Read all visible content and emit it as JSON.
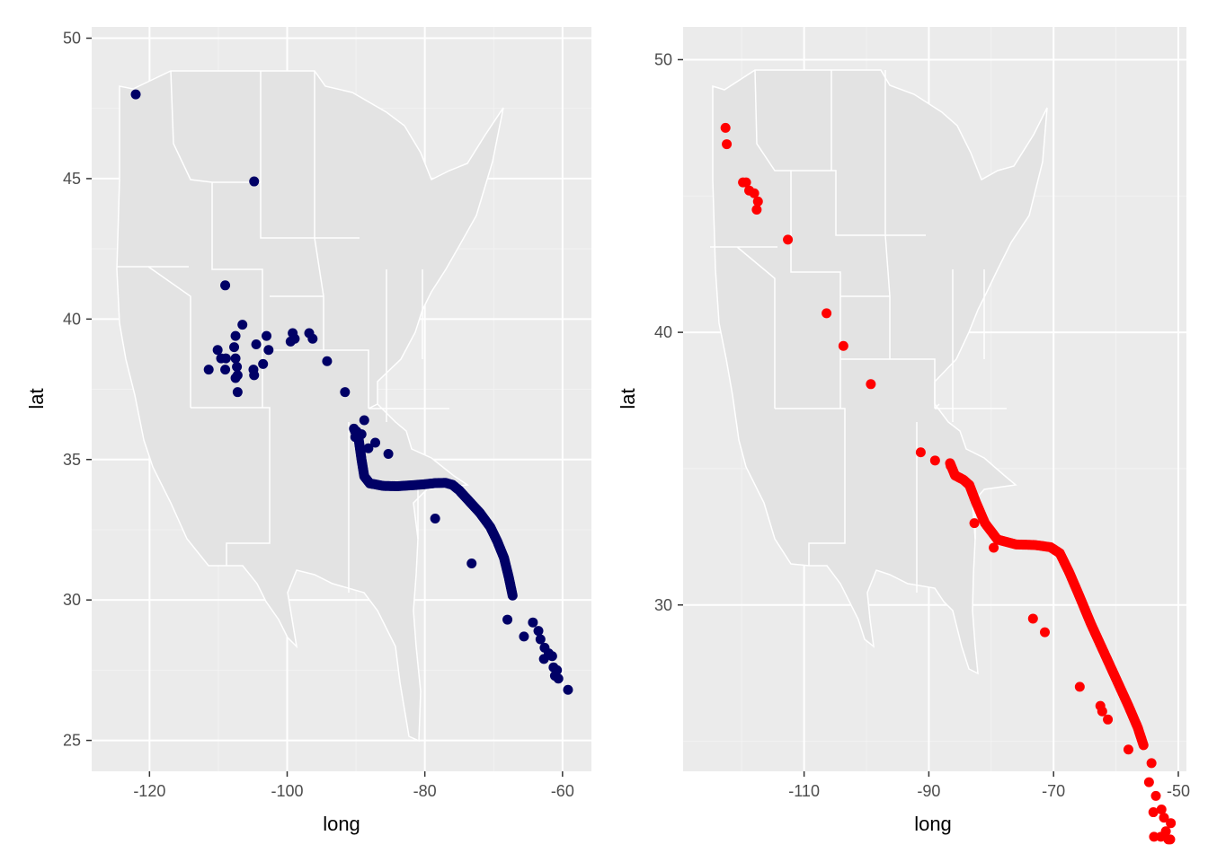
{
  "colors": {
    "panel_bg": "#ebebeb",
    "grid_major": "#ffffff",
    "grid_minor": "#f2f2f2",
    "map_fill": "#e3e3e3",
    "map_border": "#ffffff",
    "tick_text": "#4d4d4d",
    "axis_title": "#000000"
  },
  "chart_data": [
    {
      "type": "scatter",
      "title": "",
      "xlabel": "long",
      "ylabel": "lat",
      "xlim": [
        -128.4,
        -55.8
      ],
      "ylim": [
        23.9,
        50.4
      ],
      "xticks": [
        -120,
        -100,
        -80,
        -60
      ],
      "xtick_labels": [
        "-120",
        "-100",
        "-80",
        "-60"
      ],
      "yticks": [
        25,
        30,
        35,
        40,
        45,
        50
      ],
      "ytick_labels": [
        "25",
        "30",
        "35",
        "40",
        "45",
        "50"
      ],
      "grid": true,
      "legend": "none",
      "background": "US state boundaries map (lower 48)",
      "series": [
        {
          "color": "#000066",
          "points": [
            [
              -122,
              48
            ],
            [
              -104.8,
              44.9
            ],
            [
              -109,
              41.2
            ],
            [
              -106.5,
              39.8
            ],
            [
              -99.2,
              39.5
            ],
            [
              -96.8,
              39.5
            ],
            [
              -103,
              39.4
            ],
            [
              -107.5,
              39.4
            ],
            [
              -110.1,
              38.9
            ],
            [
              -107.7,
              39.0
            ],
            [
              -104.5,
              39.1
            ],
            [
              -102.7,
              38.9
            ],
            [
              -98.9,
              39.3
            ],
            [
              -99.5,
              39.2
            ],
            [
              -96.3,
              39.3
            ],
            [
              -108.9,
              38.6
            ],
            [
              -109.6,
              38.6
            ],
            [
              -107.5,
              38.6
            ],
            [
              -111.4,
              38.2
            ],
            [
              -109,
              38.2
            ],
            [
              -107.3,
              38.3
            ],
            [
              -104.9,
              38.2
            ],
            [
              -104.8,
              38.0
            ],
            [
              -103.5,
              38.4
            ],
            [
              -107.2,
              38.0
            ],
            [
              -107.5,
              37.9
            ],
            [
              -94.2,
              38.5
            ],
            [
              -107.2,
              37.4
            ],
            [
              -91.6,
              37.4
            ],
            [
              -88.8,
              36.4
            ],
            [
              -89.9,
              36.0
            ],
            [
              -90.1,
              35.8
            ],
            [
              -89.2,
              35.9
            ],
            [
              -88.2,
              35.4
            ],
            [
              -87.2,
              35.6
            ],
            [
              -85.3,
              35.2
            ],
            [
              -78.5,
              32.9
            ],
            [
              -73.2,
              31.3
            ],
            [
              -68.0,
              29.3
            ],
            [
              -65.6,
              28.7
            ],
            [
              -64.3,
              29.2
            ],
            [
              -63.5,
              28.9
            ],
            [
              -63.2,
              28.6
            ],
            [
              -62.6,
              28.3
            ],
            [
              -62.0,
              28.1
            ],
            [
              -61.5,
              28.0
            ],
            [
              -62.7,
              27.9
            ],
            [
              -61.3,
              27.6
            ],
            [
              -60.8,
              27.5
            ],
            [
              -61.1,
              27.3
            ],
            [
              -60.6,
              27.2
            ],
            [
              -59.2,
              26.8
            ]
          ],
          "curve": [
            [
              -90.3,
              36.1
            ],
            [
              -89.6,
              35.7
            ],
            [
              -89.2,
              35.0
            ],
            [
              -88.8,
              34.4
            ],
            [
              -88.0,
              34.15
            ],
            [
              -86.0,
              34.06
            ],
            [
              -84.0,
              34.05
            ],
            [
              -82.0,
              34.08
            ],
            [
              -80.0,
              34.12
            ],
            [
              -78.5,
              34.16
            ],
            [
              -77.0,
              34.17
            ],
            [
              -76.0,
              34.1
            ],
            [
              -75.0,
              33.9
            ],
            [
              -73.5,
              33.5
            ],
            [
              -72.0,
              33.1
            ],
            [
              -70.5,
              32.6
            ],
            [
              -69.5,
              32.1
            ],
            [
              -68.5,
              31.5
            ],
            [
              -67.8,
              30.8
            ],
            [
              -67.2,
              30.1
            ]
          ]
        }
      ]
    },
    {
      "type": "scatter",
      "title": "",
      "xlabel": "long",
      "ylabel": "lat",
      "xlim": [
        -129.4,
        -48.7
      ],
      "ylim": [
        23.9,
        51.2
      ],
      "xticks": [
        -110,
        -90,
        -70,
        -50
      ],
      "xtick_labels": [
        "-110",
        "-90",
        "-70",
        "-50"
      ],
      "yticks": [
        30,
        40,
        50
      ],
      "ytick_labels": [
        "30",
        "40",
        "50"
      ],
      "grid": true,
      "legend": "none",
      "background": "US state boundaries map (lower 48)",
      "series": [
        {
          "color": "#ff0000",
          "points": [
            [
              -122.6,
              47.5
            ],
            [
              -122.4,
              46.9
            ],
            [
              -119.8,
              45.5
            ],
            [
              -119.3,
              45.5
            ],
            [
              -118.8,
              45.2
            ],
            [
              -118,
              45.1
            ],
            [
              -117.4,
              44.8
            ],
            [
              -117.6,
              44.5
            ],
            [
              -112.6,
              43.4
            ],
            [
              -106.4,
              40.7
            ],
            [
              -103.7,
              39.5
            ],
            [
              -99.3,
              38.1
            ],
            [
              -91.3,
              35.6
            ],
            [
              -89.0,
              35.3
            ],
            [
              -86.5,
              35.1
            ],
            [
              -82.7,
              33.0
            ],
            [
              -79.6,
              32.1
            ],
            [
              -73.3,
              29.5
            ],
            [
              -71.4,
              29.0
            ],
            [
              -65.8,
              27.0
            ],
            [
              -62.5,
              26.3
            ],
            [
              -62.2,
              26.1
            ],
            [
              -61.3,
              25.8
            ],
            [
              -58.0,
              24.7
            ],
            [
              -54.3,
              24.2
            ],
            [
              -54.7,
              23.5
            ],
            [
              -53.6,
              23.0
            ],
            [
              -54.0,
              22.4
            ],
            [
              -52.7,
              22.5
            ],
            [
              -52.3,
              22.2
            ],
            [
              -51.2,
              22.0
            ],
            [
              -52.0,
              21.7
            ],
            [
              -52.8,
              21.5
            ],
            [
              -51.6,
              21.4
            ],
            [
              -51.3,
              21.4
            ],
            [
              -53.9,
              21.5
            ]
          ],
          "curve": [
            [
              -86.6,
              35.2
            ],
            [
              -85.8,
              34.75
            ],
            [
              -84.5,
              34.6
            ],
            [
              -83.5,
              34.4
            ],
            [
              -82.5,
              33.8
            ],
            [
              -81.0,
              33.0
            ],
            [
              -79.0,
              32.4
            ],
            [
              -76.0,
              32.22
            ],
            [
              -73.0,
              32.2
            ],
            [
              -70.5,
              32.12
            ],
            [
              -69.0,
              31.9
            ],
            [
              -67.5,
              31.2
            ],
            [
              -66.0,
              30.4
            ],
            [
              -64.0,
              29.3
            ],
            [
              -62.0,
              28.3
            ],
            [
              -60.0,
              27.3
            ],
            [
              -58.0,
              26.3
            ],
            [
              -56.5,
              25.5
            ],
            [
              -55.5,
              24.8
            ]
          ]
        }
      ]
    }
  ]
}
